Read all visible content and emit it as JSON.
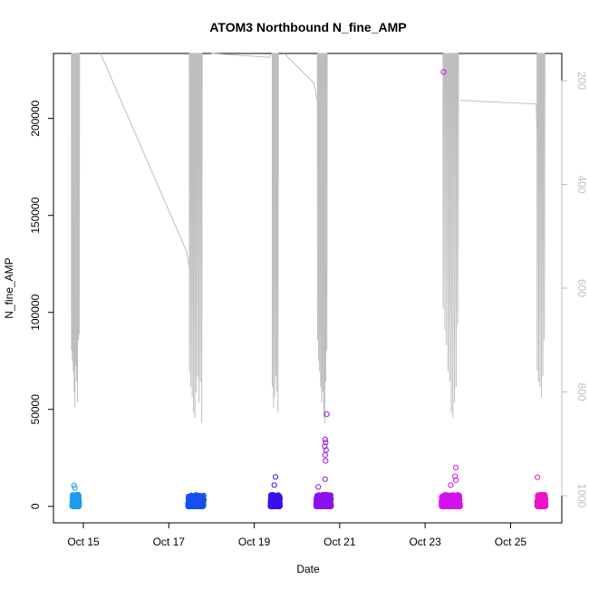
{
  "chart_data": {
    "type": "scatter",
    "title": "ATOM3 Northbound N_fine_AMP",
    "xlabel": "Date",
    "ylabel": "N_fine_AMP",
    "x_tick_labels": [
      "Oct 15",
      "Oct 17",
      "Oct 19",
      "Oct 21",
      "Oct 23",
      "Oct 25"
    ],
    "x_tick_days": [
      15,
      17,
      19,
      21,
      23,
      25
    ],
    "xlim_days": [
      14.3,
      26.2
    ],
    "y_ticks": [
      0,
      50000,
      100000,
      150000,
      200000
    ],
    "y_tick_labels": [
      "0",
      "50000",
      "100000",
      "150000",
      "200000"
    ],
    "ylim": [
      -8500,
      233500
    ],
    "right_axis": {
      "ticks": [
        200,
        400,
        600,
        800,
        1000
      ],
      "tick_labels": [
        "200",
        "400",
        "600",
        "800",
        "1000"
      ],
      "reversed": true,
      "color": "#bebebe",
      "series": {
        "name": "",
        "color": "#bebebe",
        "segments": [
          {
            "start": 14.72,
            "end": 14.92,
            "deep": [
              720,
              740,
              760,
              800,
              830,
              750,
              780,
              820,
              700,
              690
            ]
          },
          {
            "start": 17.48,
            "end": 17.8,
            "deep": [
              760,
              790,
              810,
              840,
              850,
              800,
              770,
              820,
              780,
              860
            ]
          },
          {
            "start": 19.42,
            "end": 19.58,
            "deep": [
              790,
              830,
              810,
              770,
              800,
              840
            ]
          },
          {
            "start": 20.48,
            "end": 20.72,
            "deep": [
              700,
              740,
              760,
              790,
              820,
              800,
              850,
              860,
              780,
              720
            ]
          },
          {
            "start": 23.42,
            "end": 23.8,
            "deep": [
              640,
              680,
              710,
              760,
              780,
              840,
              850,
              820,
              790,
              670
            ]
          },
          {
            "start": 25.62,
            "end": 25.82,
            "deep": [
              760,
              780,
              790,
              810,
              770,
              700
            ]
          }
        ],
        "connectors": [
          [
            [
              15.4,
              140
            ],
            [
              17.42,
              530
            ],
            [
              17.48,
              560
            ]
          ],
          [
            [
              18.0,
              140
            ],
            [
              19.35,
              155
            ],
            [
              19.4,
              140
            ]
          ],
          [
            [
              19.7,
              135
            ],
            [
              20.4,
              205
            ],
            [
              20.48,
              240
            ]
          ],
          [
            [
              23.82,
              238
            ],
            [
              25.6,
              245
            ],
            [
              25.62,
              300
            ]
          ]
        ]
      }
    },
    "series": [
      {
        "name": "",
        "color": "#1E9CF0",
        "day_start": 14.74,
        "day_end": 14.9,
        "max": 11000,
        "n": 280
      },
      {
        "name": "",
        "color": "#1650EE",
        "day_start": 17.45,
        "day_end": 17.82,
        "max": 6000,
        "n": 340
      },
      {
        "name": "",
        "color": "#3A10EE",
        "day_start": 19.38,
        "day_end": 19.6,
        "max": 15000,
        "n": 300
      },
      {
        "name": "",
        "color": "#8C12EE",
        "day_start": 20.45,
        "day_end": 20.8,
        "max": 48000,
        "n": 300
      },
      {
        "name": "",
        "color": "#D412EE",
        "day_start": 23.38,
        "day_end": 23.82,
        "max": 224000,
        "n": 380
      },
      {
        "name": "",
        "color": "#EE12C8",
        "day_start": 25.62,
        "day_end": 25.82,
        "max": 15000,
        "n": 260
      }
    ],
    "outliers": [
      {
        "day": 14.78,
        "value": 10800,
        "series": 0
      },
      {
        "day": 14.8,
        "value": 9500,
        "series": 0
      },
      {
        "day": 19.5,
        "value": 15200,
        "series": 2
      },
      {
        "day": 19.47,
        "value": 11000,
        "series": 2
      },
      {
        "day": 20.7,
        "value": 47500,
        "series": 3
      },
      {
        "day": 20.66,
        "value": 34500,
        "series": 3
      },
      {
        "day": 20.67,
        "value": 33000,
        "series": 3
      },
      {
        "day": 20.65,
        "value": 31000,
        "series": 3
      },
      {
        "day": 20.68,
        "value": 29000,
        "series": 3
      },
      {
        "day": 20.66,
        "value": 26500,
        "series": 3
      },
      {
        "day": 20.67,
        "value": 23500,
        "series": 3
      },
      {
        "day": 20.66,
        "value": 14000,
        "series": 3
      },
      {
        "day": 20.5,
        "value": 10000,
        "series": 3
      },
      {
        "day": 23.43,
        "value": 224000,
        "series": 4
      },
      {
        "day": 23.72,
        "value": 20000,
        "series": 4
      },
      {
        "day": 23.7,
        "value": 15500,
        "series": 4
      },
      {
        "day": 23.72,
        "value": 13500,
        "series": 4
      },
      {
        "day": 23.6,
        "value": 11000,
        "series": 4
      },
      {
        "day": 25.63,
        "value": 15000,
        "series": 5
      }
    ],
    "grid": false,
    "legend": "none"
  }
}
